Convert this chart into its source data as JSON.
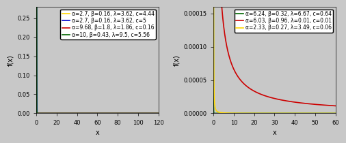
{
  "left_series": [
    {
      "label": "α=2.7, β=0.16, λ=3.62, c=4.44",
      "color": "#FFD700",
      "alpha": 2.7,
      "beta": 0.16,
      "lam": 3.62,
      "c": 4.44
    },
    {
      "label": "α=2.7, β=0.16, λ=3.62, c=5",
      "color": "#0000CC",
      "alpha": 2.7,
      "beta": 0.16,
      "lam": 3.62,
      "c": 5.0
    },
    {
      "label": "α=9.68, β=1.8, λ=1.86, c=0.16",
      "color": "#CC0000",
      "alpha": 9.68,
      "beta": 1.8,
      "lam": 1.86,
      "c": 0.16
    },
    {
      "label": "α=10, β=0.43, λ=9.5, c=5.56",
      "color": "#006600",
      "alpha": 10.0,
      "beta": 0.43,
      "lam": 9.5,
      "c": 5.56
    }
  ],
  "right_series": [
    {
      "label": "α=6.24, β=0.32, λ=6.67, c=0.64",
      "color": "#006600",
      "alpha": 6.24,
      "beta": 0.32,
      "lam": 6.67,
      "c": 0.64
    },
    {
      "label": "α=6.03, β=0.96, λ=0.01, c=0.01",
      "color": "#CC0000",
      "alpha": 6.03,
      "beta": 0.96,
      "lam": 0.01,
      "c": 0.01
    },
    {
      "label": "α=2.33, β=0.27, λ=3.49, c=0.06",
      "color": "#FFD700",
      "alpha": 2.33,
      "beta": 0.27,
      "lam": 3.49,
      "c": 0.06
    }
  ],
  "left_xlim": [
    0,
    120
  ],
  "left_ylim": [
    0,
    0.28
  ],
  "left_xticks": [
    0,
    20,
    40,
    60,
    80,
    100,
    120
  ],
  "left_yticks": [
    0.0,
    0.05,
    0.1,
    0.15,
    0.2,
    0.25
  ],
  "right_xlim": [
    0,
    60
  ],
  "right_ylim": [
    0,
    0.00016
  ],
  "right_xticks": [
    0,
    10,
    20,
    30,
    40,
    50,
    60
  ],
  "right_yticks": [
    0.0,
    5e-05,
    0.0001,
    0.00015
  ],
  "xlabel": "x",
  "left_ylabel": "f(x)",
  "right_ylabel": "f(x)",
  "bg_color": "#C8C8C8",
  "legend_fontsize": 5.5,
  "tick_fontsize": 6,
  "label_fontsize": 7,
  "linewidth": 1.2
}
